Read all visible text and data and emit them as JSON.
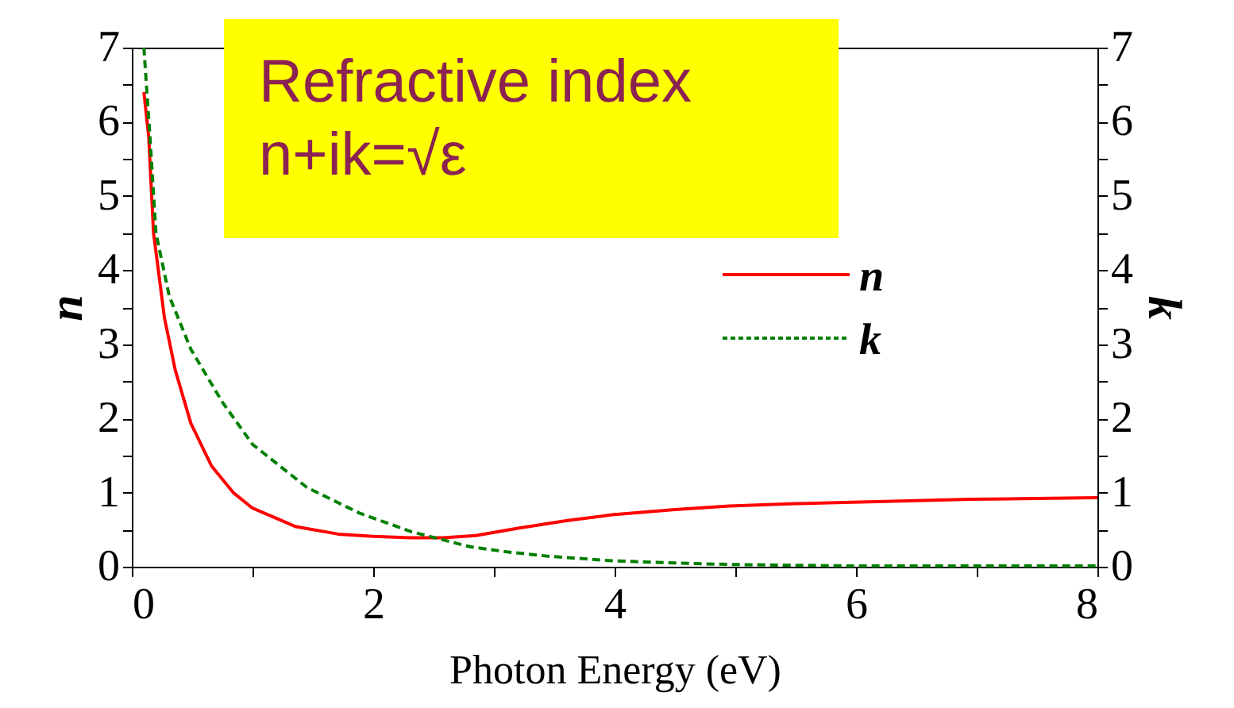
{
  "chart_data": {
    "type": "line",
    "xlabel": "Photon Energy (eV)",
    "ylabel": "n",
    "y2label": "k",
    "annotations": [
      "Refractive index\nn+ik=√ε"
    ],
    "xlim": [
      0,
      8
    ],
    "xticks": [
      0,
      {
        "value": 1,
        "label": null
      },
      2,
      {
        "value": 3,
        "label": null
      },
      4,
      {
        "value": 5,
        "label": null
      },
      6,
      {
        "value": 7,
        "label": null
      },
      8
    ],
    "ylim": [
      0,
      7
    ],
    "yticks": [
      0,
      {
        "value": 0.5,
        "label": null
      },
      1,
      {
        "value": 1.5,
        "label": null
      },
      2,
      {
        "value": 2.5,
        "label": null
      },
      3,
      {
        "value": 3.5,
        "label": null
      },
      4,
      {
        "value": 4.5,
        "label": null
      },
      5,
      {
        "value": 5.5,
        "label": null
      },
      6,
      {
        "value": 6.5,
        "label": null
      },
      7
    ],
    "y2lim": [
      0,
      7
    ],
    "y2ticks": [
      0,
      {
        "value": 0.5,
        "label": null
      },
      1,
      {
        "value": 1.5,
        "label": null
      },
      2,
      {
        "value": 2.5,
        "label": null
      },
      3,
      {
        "value": 3.5,
        "label": null
      },
      4,
      {
        "value": 4.5,
        "label": null
      },
      5,
      {
        "value": 5.5,
        "label": null
      },
      6,
      {
        "value": 6.5,
        "label": null
      },
      7
    ],
    "grid": false,
    "legend": "right",
    "marker": "none",
    "series": [
      {
        "name": "n",
        "color": "#ff0000",
        "line_style": "solid",
        "x": [
          0.1,
          0.14,
          0.18,
          0.27,
          0.36,
          0.49,
          0.66,
          0.84,
          1.0,
          1.36,
          1.71,
          2.0,
          2.32,
          2.58,
          2.85,
          3.2,
          3.6,
          3.98,
          4.5,
          4.95,
          5.5,
          5.97,
          6.5,
          6.95,
          7.5,
          8.0
        ],
        "values": [
          6.4,
          5.8,
          4.5,
          3.36,
          2.65,
          1.93,
          1.36,
          1.0,
          0.79,
          0.54,
          0.44,
          0.41,
          0.39,
          0.39,
          0.42,
          0.52,
          0.62,
          0.7,
          0.77,
          0.82,
          0.85,
          0.87,
          0.89,
          0.91,
          0.92,
          0.93
        ]
      },
      {
        "name": "k",
        "color": "#008000",
        "line_style": "dashed",
        "axis": "y2",
        "x": [
          0.1,
          0.15,
          0.2,
          0.31,
          0.49,
          0.75,
          1.0,
          1.45,
          1.89,
          2.32,
          2.8,
          3.11,
          3.46,
          3.98,
          4.5,
          4.95,
          5.5,
          6.0,
          7.0,
          8.0
        ],
        "values": [
          7.0,
          5.8,
          4.5,
          3.65,
          2.93,
          2.22,
          1.65,
          1.07,
          0.72,
          0.47,
          0.27,
          0.2,
          0.14,
          0.08,
          0.05,
          0.03,
          0.02,
          0.01,
          0.01,
          0.01
        ]
      }
    ]
  }
}
